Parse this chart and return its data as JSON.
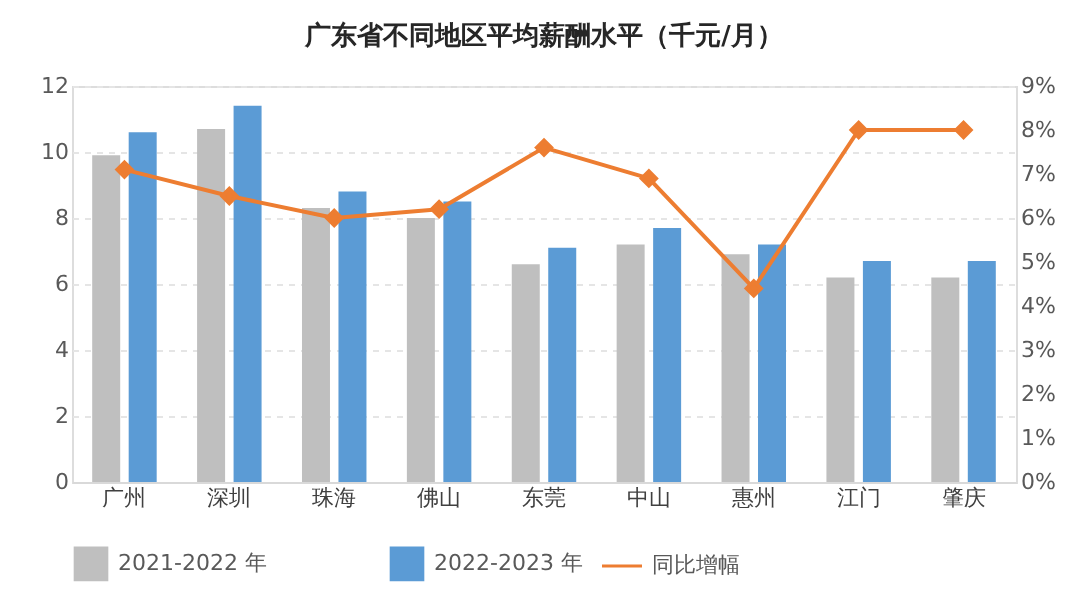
{
  "chart_data": {
    "type": "bar",
    "title": "广东省不同地区平均薪酬水平（千元/月）",
    "categories": [
      "广州",
      "深圳",
      "珠海",
      "佛山",
      "东莞",
      "中山",
      "惠州",
      "江门",
      "肇庆"
    ],
    "series": [
      {
        "name": "2021-2022 年",
        "color": "#bfbfbf",
        "values": [
          9.9,
          10.7,
          8.3,
          8.0,
          6.6,
          7.2,
          6.9,
          6.2,
          6.2
        ]
      },
      {
        "name": "2022-2023 年",
        "color": "#5b9bd5",
        "values": [
          10.6,
          11.4,
          8.8,
          8.5,
          7.1,
          7.7,
          7.2,
          6.7,
          6.7
        ]
      },
      {
        "name": "同比增幅",
        "color": "#ed7d31",
        "type": "line",
        "axis": "y2",
        "marker": "diamond",
        "values": [
          7.1,
          6.5,
          6.0,
          6.2,
          7.6,
          6.9,
          4.4,
          8.0,
          8.0
        ]
      }
    ],
    "ylim": [
      0,
      12
    ],
    "yticks": [
      0,
      2,
      4,
      6,
      8,
      10,
      12
    ],
    "y2lim": [
      0,
      9
    ],
    "y2ticks": [
      {
        "value": 0,
        "label": "0%"
      },
      {
        "value": 1,
        "label": "1%"
      },
      {
        "value": 2,
        "label": "2%"
      },
      {
        "value": 3,
        "label": "3%"
      },
      {
        "value": 4,
        "label": "4%"
      },
      {
        "value": 5,
        "label": "5%"
      },
      {
        "value": 6,
        "label": "6%"
      },
      {
        "value": 7,
        "label": "7%"
      },
      {
        "value": 8,
        "label": "8%"
      },
      {
        "value": 9,
        "label": "9%"
      }
    ],
    "grid": "y",
    "legend": "bottom"
  }
}
